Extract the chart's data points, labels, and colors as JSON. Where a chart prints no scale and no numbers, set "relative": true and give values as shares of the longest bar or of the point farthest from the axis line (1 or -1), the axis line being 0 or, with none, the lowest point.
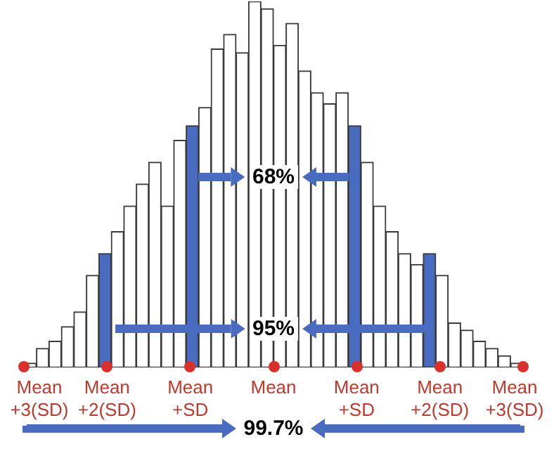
{
  "chart_data": {
    "type": "bar",
    "relative": true,
    "categories": [
      null,
      null,
      null,
      null,
      null,
      null,
      null,
      null,
      null,
      null,
      null,
      null,
      null,
      null,
      null,
      null,
      null,
      null,
      null,
      null,
      null,
      null,
      null,
      null,
      null,
      null,
      null,
      null,
      null,
      null,
      null,
      null,
      null,
      null,
      null,
      null,
      null,
      null,
      null,
      null
    ],
    "values": [
      0.01,
      0.05,
      0.07,
      0.11,
      0.15,
      0.25,
      0.31,
      0.37,
      0.44,
      0.5,
      0.56,
      0.44,
      0.62,
      0.66,
      0.71,
      0.87,
      0.91,
      0.86,
      1,
      0.98,
      0.88,
      0.94,
      0.81,
      0.75,
      0.72,
      0.75,
      0.66,
      0.56,
      0.44,
      0.37,
      0.31,
      0.28,
      0.31,
      0.25,
      0.12,
      0.1,
      0.07,
      0.05,
      0.03,
      0.01
    ],
    "colors": [
      "#ffffff",
      "#ffffff",
      "#ffffff",
      "#ffffff",
      "#ffffff",
      "#ffffff",
      "#4a6cc0",
      "#ffffff",
      "#ffffff",
      "#ffffff",
      "#ffffff",
      "#ffffff",
      "#ffffff",
      "#4a6cc0",
      "#ffffff",
      "#ffffff",
      "#ffffff",
      "#ffffff",
      "#ffffff",
      "#ffffff",
      "#ffffff",
      "#ffffff",
      "#ffffff",
      "#ffffff",
      "#ffffff",
      "#ffffff",
      "#4a6cc0",
      "#ffffff",
      "#ffffff",
      "#ffffff",
      "#ffffff",
      "#ffffff",
      "#4a6cc0",
      "#ffffff",
      "#ffffff",
      "#ffffff",
      "#ffffff",
      "#ffffff",
      "#ffffff",
      "#ffffff"
    ],
    "annotations": [
      "Mean +3(SD)",
      "Mean +2(SD)",
      "Mean +SD",
      "Mean",
      "Mean +SD",
      "Mean +2(SD)",
      "Mean +3(SD)",
      "68%",
      "95%",
      "99.7%"
    ],
    "legend": false,
    "grid": false
  }
}
